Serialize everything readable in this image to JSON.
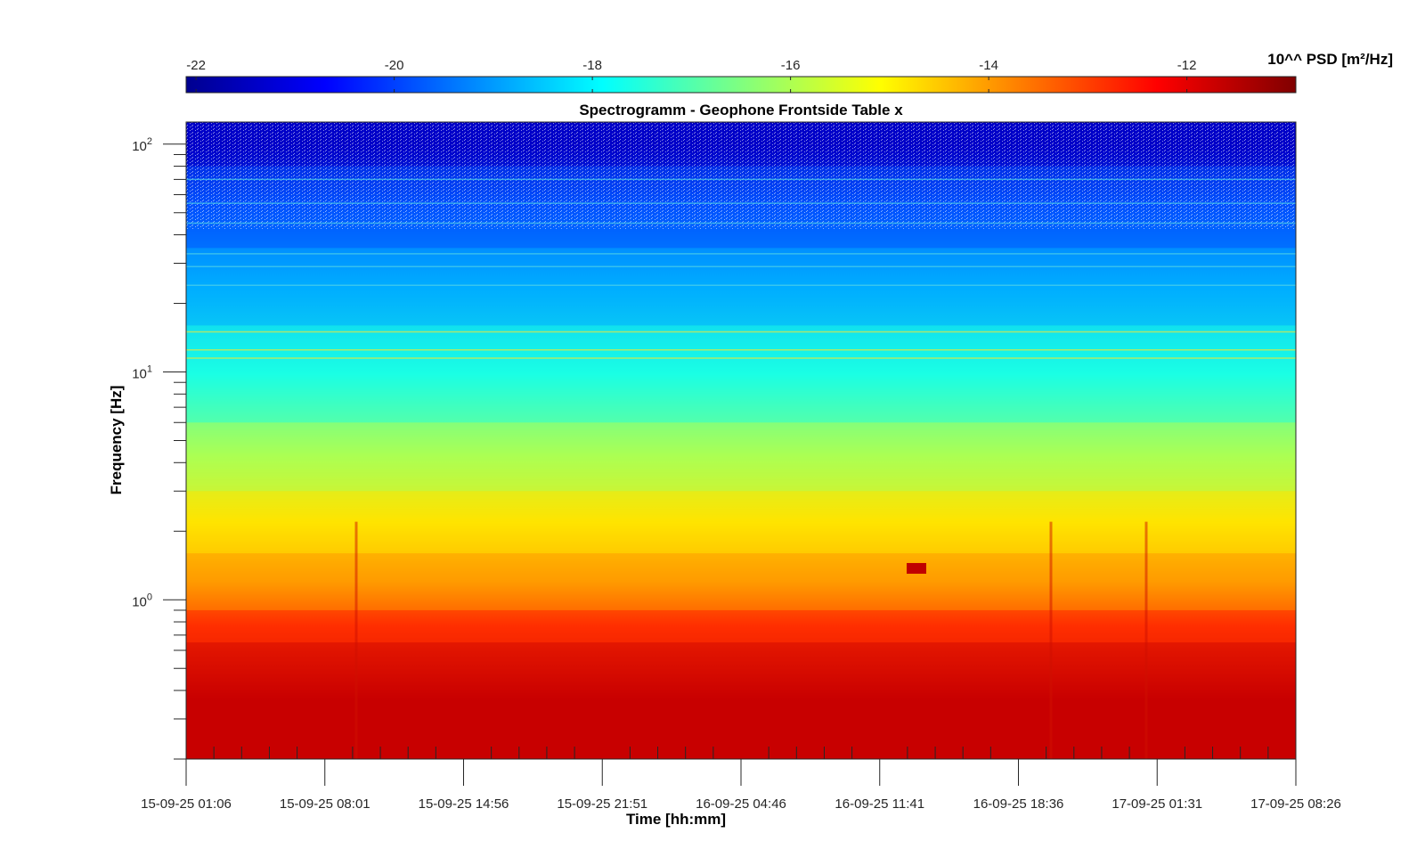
{
  "chart_data": {
    "type": "heatmap",
    "title": "Spectrogramm - Geophone Frontside Table x",
    "xlabel": "Time [hh:mm]",
    "ylabel": "Frequency [Hz]",
    "x_tick_labels": [
      "15-09-25 01:06",
      "15-09-25 08:01",
      "15-09-25 14:56",
      "15-09-25 21:51",
      "16-09-25 04:46",
      "16-09-25 11:41",
      "16-09-25 18:36",
      "17-09-25 01:31",
      "17-09-25 08:26"
    ],
    "y_scale": "log",
    "y_tick_labels": [
      {
        "base": "10",
        "exp": "0",
        "value": 1
      },
      {
        "base": "10",
        "exp": "1",
        "value": 10
      },
      {
        "base": "10",
        "exp": "2",
        "value": 100
      }
    ],
    "ylim": [
      0.2,
      125
    ],
    "colorbar": {
      "label": "10^^ PSD [m²/Hz]",
      "ticks": [
        "-22",
        "-20",
        "-18",
        "-16",
        "-14",
        "-12"
      ],
      "tick_values": [
        -22,
        -20,
        -18,
        -16,
        -14,
        -12
      ],
      "range": [
        -22.1,
        -10.9
      ],
      "colormap": "jet"
    },
    "bands": [
      {
        "f_low": 0.2,
        "f_high": 0.65,
        "log_psd": -11.7
      },
      {
        "f_low": 0.65,
        "f_high": 0.9,
        "log_psd": -12.8
      },
      {
        "f_low": 0.9,
        "f_high": 1.6,
        "log_psd": -14.0
      },
      {
        "f_low": 1.6,
        "f_high": 3.0,
        "log_psd": -14.8
      },
      {
        "f_low": 3.0,
        "f_high": 6.0,
        "log_psd": -16.0
      },
      {
        "f_low": 6.0,
        "f_high": 16.0,
        "log_psd": -17.6
      },
      {
        "f_low": 16.0,
        "f_high": 35.0,
        "log_psd": -18.8
      },
      {
        "f_low": 35.0,
        "f_high": 80.0,
        "log_psd": -19.8
      },
      {
        "f_low": 80.0,
        "f_high": 125.0,
        "log_psd": -21.3
      }
    ]
  }
}
